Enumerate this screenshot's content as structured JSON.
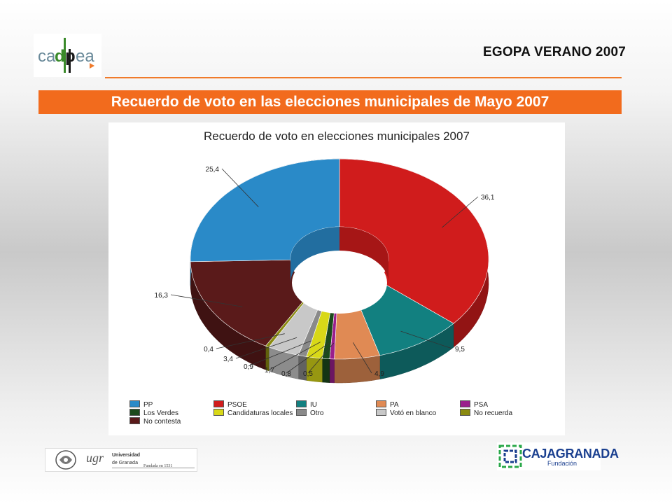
{
  "header": {
    "logo_text": "cadpea",
    "title": "EGOPA VERANO 2007"
  },
  "banner": {
    "text": "Recuerdo de voto en las elecciones municipales de Mayo 2007"
  },
  "chart_data": {
    "type": "pie",
    "title": "Recuerdo de voto en elecciones municipales 2007",
    "style": "3d-donut",
    "legend_position": "bottom",
    "series": [
      {
        "name": "PP",
        "value": 25.4,
        "label": "25,4",
        "color": "#2a8ac8"
      },
      {
        "name": "PSOE",
        "value": 36.1,
        "label": "36,1",
        "color": "#d01c1c"
      },
      {
        "name": "IU",
        "value": 9.5,
        "label": "9,5",
        "color": "#128080"
      },
      {
        "name": "PA",
        "value": 4.9,
        "label": "4,9",
        "color": "#e08a54"
      },
      {
        "name": "PSA",
        "value": 0.5,
        "label": "0,5",
        "color": "#9a1f8c"
      },
      {
        "name": "Los Verdes",
        "value": 0.8,
        "label": "0,8",
        "color": "#1c4a1c"
      },
      {
        "name": "Candidaturas locales",
        "value": 1.7,
        "label": "1,7",
        "color": "#d8d818"
      },
      {
        "name": "Otro",
        "value": 0.9,
        "label": "0,9",
        "color": "#8a8a8a"
      },
      {
        "name": "Votó en blanco",
        "value": 3.4,
        "label": "3,4",
        "color": "#c8c8c8"
      },
      {
        "name": "No recuerda",
        "value": 0.4,
        "label": "0,4",
        "color": "#8a8a10"
      },
      {
        "name": "No contesta",
        "value": 16.3,
        "label": "16,3",
        "color": "#5a1a1a"
      }
    ],
    "legend": [
      [
        "PP",
        "PSOE",
        "IU",
        "PA",
        "PSA"
      ],
      [
        "Los Verdes",
        "Candidaturas locales",
        "Otro",
        "Votó en blanco",
        "No recuerda"
      ],
      [
        "No contesta"
      ]
    ]
  },
  "footer": {
    "ugr_text": "ugr",
    "ugr_line1": "Universidad",
    "ugr_line2": "de Granada",
    "ugr_founded": "Fundada en 1531",
    "caja_text": "CAJAGRANADA",
    "caja_sub": "Fundación"
  }
}
